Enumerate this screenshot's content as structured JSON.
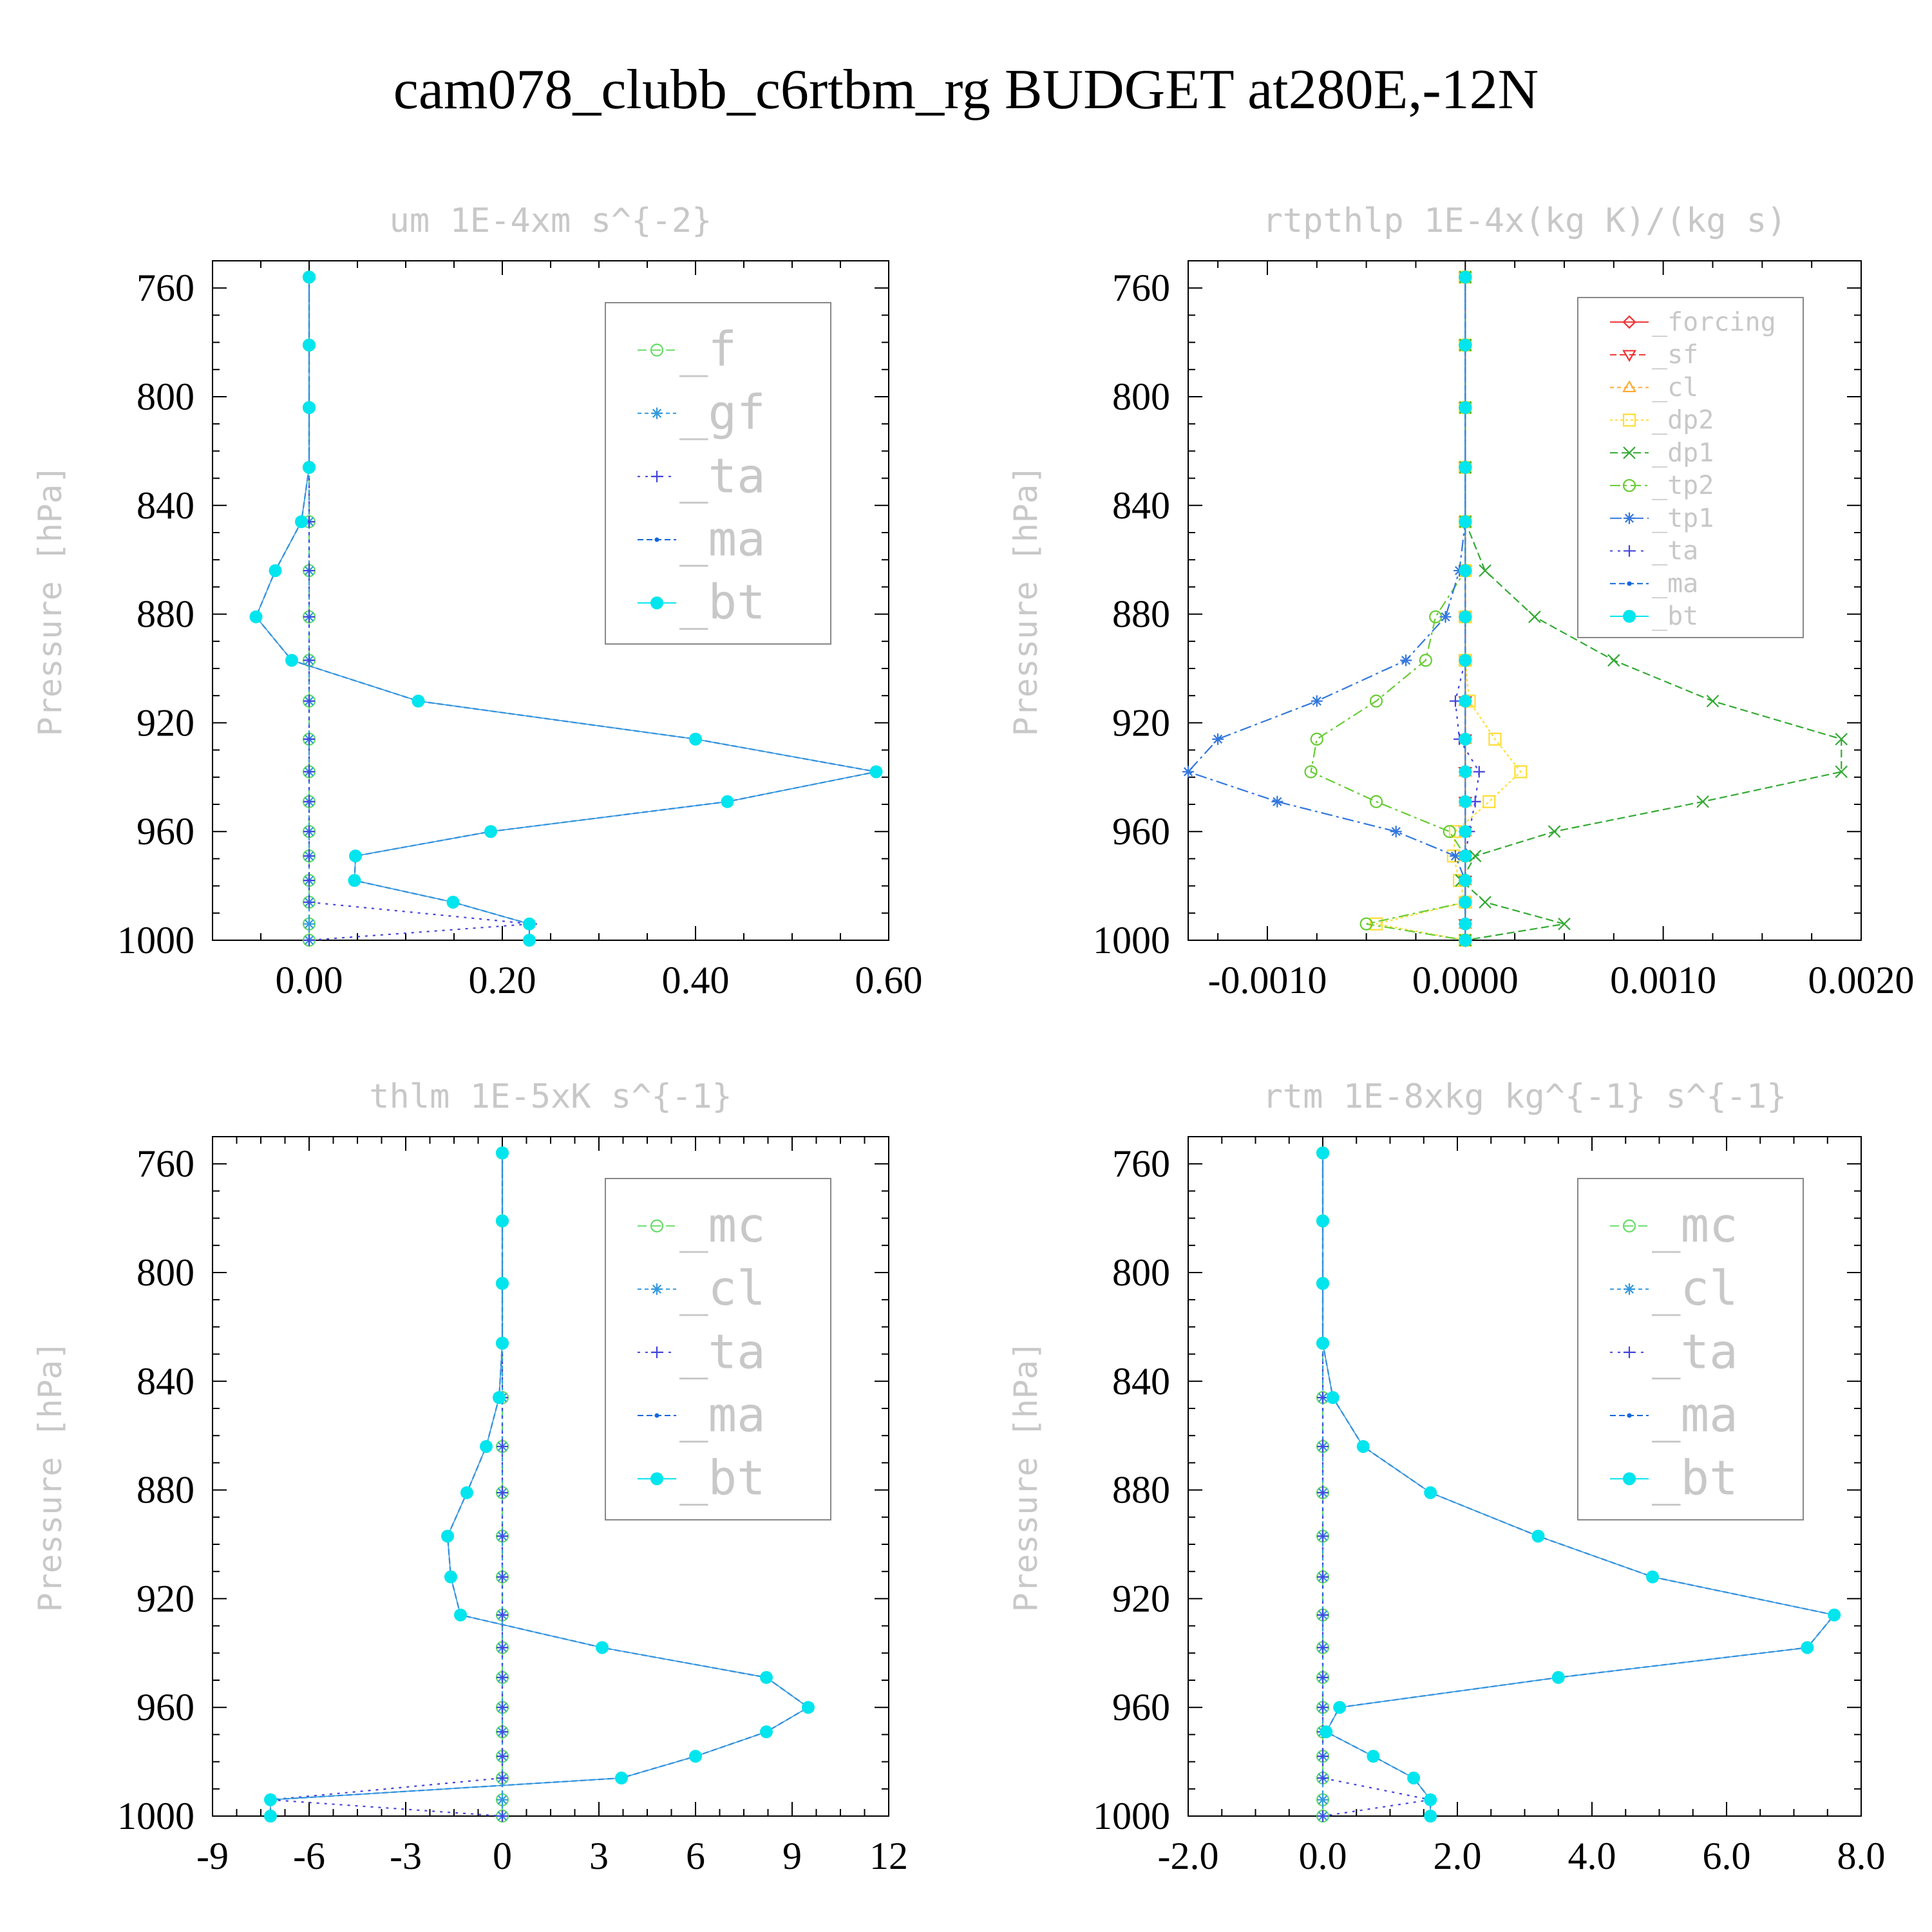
{
  "figure": {
    "title": "cam078_clubb_c6rtbm_rg  BUDGET at280E,-12N"
  },
  "colors": {
    "_f": "#66dd66",
    "_gf": "#3399dd",
    "_ta": "#4444dd",
    "_ma": "#1166dd",
    "_bt": "#00e5ee",
    "_mc": "#66dd66",
    "_cl": "#3399dd",
    "_forcing": "#ee3333",
    "_sf": "#ee3333",
    "_cl_orange": "#ffaa33",
    "_dp2": "#ffdd33",
    "_dp1": "#33aa33",
    "_tp2": "#66cc33",
    "_tp1": "#3377dd"
  },
  "chart_data": [
    {
      "type": "line",
      "title": "um  1E-4xm s^{-2}",
      "ylabel": "Pressure [hPa]",
      "xlim": [
        -0.1,
        0.6
      ],
      "ylim": [
        750,
        1000
      ],
      "y_inverted": true,
      "xticks": [
        "0.00",
        "0.20",
        "0.40",
        "0.60"
      ],
      "xtick_values": [
        0,
        0.2,
        0.4,
        0.6
      ],
      "yticks": [
        "760",
        "800",
        "840",
        "880",
        "920",
        "960",
        "1000"
      ],
      "legend": "top-right",
      "levels": [
        756,
        781,
        804,
        826,
        846,
        864,
        881,
        897,
        912,
        926,
        938,
        949,
        960,
        969,
        978,
        986,
        994,
        1000
      ],
      "series": [
        {
          "name": "_f",
          "marker": "circle",
          "values": [
            0,
            0,
            0,
            0,
            0,
            0,
            0,
            0,
            0,
            0,
            0,
            0,
            0,
            0,
            0,
            0,
            0,
            0
          ]
        },
        {
          "name": "_gf",
          "marker": "star",
          "values": [
            0,
            0,
            0,
            0,
            0,
            0,
            0,
            0,
            0,
            0,
            0,
            0,
            0,
            0,
            0,
            0,
            0,
            0
          ]
        },
        {
          "name": "_ta",
          "marker": "plus",
          "values": [
            0,
            0,
            0,
            0,
            0,
            0,
            0,
            0,
            0,
            0,
            0,
            0,
            0,
            0,
            0,
            0,
            0.23,
            0
          ]
        },
        {
          "name": "_ma",
          "marker": "dot",
          "values": [
            0,
            0,
            0,
            0,
            -0.008,
            -0.035,
            -0.055,
            -0.018,
            0.113,
            0.4,
            0.587,
            0.433,
            0.188,
            0.048,
            0.047,
            0.149,
            0.228,
            0.228
          ]
        },
        {
          "name": "_bt",
          "marker": "filled",
          "values": [
            0,
            0,
            0,
            0,
            -0.008,
            -0.035,
            -0.055,
            -0.018,
            0.113,
            0.4,
            0.587,
            0.433,
            0.188,
            0.048,
            0.047,
            0.149,
            0.228,
            0.228
          ]
        }
      ]
    },
    {
      "type": "line",
      "title": "rtpthlp  1E-4x(kg K)/(kg s)",
      "ylabel": "Pressure [hPa]",
      "xlim": [
        -0.0014,
        0.002
      ],
      "ylim": [
        750,
        1000
      ],
      "y_inverted": true,
      "xticks": [
        "-0.0010",
        "0.0000",
        "0.0010",
        "0.0020"
      ],
      "xtick_values": [
        -0.001,
        0,
        0.001,
        0.002
      ],
      "yticks": [
        "760",
        "800",
        "840",
        "880",
        "920",
        "960",
        "1000"
      ],
      "legend": "top-right",
      "levels": [
        756,
        781,
        804,
        826,
        846,
        864,
        881,
        897,
        912,
        926,
        938,
        949,
        960,
        969,
        978,
        986,
        994,
        1000
      ],
      "series": [
        {
          "name": "_forcing",
          "marker": "diamond",
          "values": [
            0,
            0,
            0,
            0,
            0,
            0,
            0,
            0,
            0,
            0,
            0,
            0,
            0,
            0,
            0,
            0,
            0,
            0
          ]
        },
        {
          "name": "_sf",
          "marker": "tri-down",
          "values": [
            0,
            0,
            0,
            0,
            0,
            0,
            0,
            0,
            0,
            0,
            0,
            0,
            0,
            0,
            0,
            0,
            0,
            0
          ]
        },
        {
          "name": "_cl",
          "marker": "tri-up",
          "values": [
            0,
            0,
            0,
            0,
            0,
            0,
            0,
            0,
            0,
            0,
            0,
            0,
            0,
            0,
            0,
            0,
            0,
            0
          ]
        },
        {
          "name": "_dp2",
          "marker": "square",
          "values": [
            0,
            0,
            0,
            0,
            0,
            0,
            0,
            0,
            2e-05,
            0.00015,
            0.00028,
            0.00012,
            -5e-05,
            -6e-05,
            -3e-05,
            0,
            -0.00045,
            0
          ]
        },
        {
          "name": "_dp1",
          "marker": "x",
          "values": [
            0,
            0,
            0,
            0,
            0,
            0.0001,
            0.00035,
            0.00075,
            0.00125,
            0.0019,
            0.0019,
            0.0012,
            0.00045,
            5e-05,
            -2e-05,
            0.0001,
            0.0005,
            0
          ]
        },
        {
          "name": "_tp2",
          "marker": "circle",
          "values": [
            0,
            0,
            0,
            0,
            0,
            0,
            -0.00015,
            -0.0002,
            -0.00045,
            -0.00075,
            -0.00078,
            -0.00045,
            -8e-05,
            0,
            0,
            0,
            -0.0005,
            0
          ]
        },
        {
          "name": "_tp1",
          "marker": "star",
          "values": [
            0,
            0,
            0,
            0,
            0,
            -3e-05,
            -0.0001,
            -0.0003,
            -0.00075,
            -0.00125,
            -0.0014,
            -0.00095,
            -0.00035,
            -5e-05,
            0,
            0,
            0,
            0
          ]
        },
        {
          "name": "_ta",
          "marker": "plus",
          "values": [
            0,
            0,
            0,
            0,
            0,
            0,
            0,
            0,
            -5e-05,
            -3e-05,
            7e-05,
            5e-05,
            2e-05,
            0,
            0,
            0,
            0,
            0
          ]
        },
        {
          "name": "_ma",
          "marker": "dot",
          "values": [
            0,
            0,
            0,
            0,
            0,
            0,
            0,
            0,
            0,
            0,
            0,
            0,
            0,
            0,
            0,
            0,
            0,
            0
          ]
        },
        {
          "name": "_bt",
          "marker": "filled",
          "values": [
            0,
            0,
            0,
            0,
            0,
            0,
            0,
            0,
            0,
            0,
            0,
            0,
            0,
            0,
            0,
            0,
            0,
            0
          ]
        }
      ]
    },
    {
      "type": "line",
      "title": "thlm  1E-5xK s^{-1}",
      "ylabel": "Pressure [hPa]",
      "xlim": [
        -9,
        12
      ],
      "ylim": [
        750,
        1000
      ],
      "y_inverted": true,
      "xticks": [
        "-9",
        "-6",
        "-3",
        "0",
        "3",
        "6",
        "9",
        "12"
      ],
      "xtick_values": [
        -9,
        -6,
        -3,
        0,
        3,
        6,
        9,
        12
      ],
      "yticks": [
        "760",
        "800",
        "840",
        "880",
        "920",
        "960",
        "1000"
      ],
      "legend": "top-right",
      "levels": [
        756,
        781,
        804,
        826,
        846,
        864,
        881,
        897,
        912,
        926,
        938,
        949,
        960,
        969,
        978,
        986,
        994,
        1000
      ],
      "series": [
        {
          "name": "_mc",
          "marker": "circle",
          "values": [
            0,
            0,
            0,
            0,
            0,
            0,
            0,
            0,
            0,
            0,
            0,
            0,
            0,
            0,
            0,
            0,
            0,
            0
          ]
        },
        {
          "name": "_cl",
          "marker": "star",
          "values": [
            0,
            0,
            0,
            0,
            0,
            0,
            0,
            0,
            0,
            0,
            0,
            0,
            0,
            0,
            0,
            0,
            0,
            0
          ]
        },
        {
          "name": "_ta",
          "marker": "plus",
          "values": [
            0,
            0,
            0,
            0,
            0,
            0,
            0,
            0,
            0,
            0,
            0,
            0,
            0,
            0,
            0,
            0,
            -7.2,
            0
          ]
        },
        {
          "name": "_ma",
          "marker": "dot",
          "values": [
            0,
            0,
            0,
            0,
            -0.1,
            -0.5,
            -1.1,
            -1.7,
            -1.6,
            -1.3,
            3.1,
            8.2,
            9.5,
            8.2,
            6.0,
            3.7,
            -7.2,
            -7.2
          ]
        },
        {
          "name": "_bt",
          "marker": "filled",
          "values": [
            0,
            0,
            0,
            0,
            -0.1,
            -0.5,
            -1.1,
            -1.7,
            -1.6,
            -1.3,
            3.1,
            8.2,
            9.5,
            8.2,
            6.0,
            3.7,
            -7.2,
            -7.2
          ]
        }
      ]
    },
    {
      "type": "line",
      "title": "rtm  1E-8xkg kg^{-1} s^{-1}",
      "ylabel": "Pressure [hPa]",
      "xlim": [
        -2,
        8
      ],
      "ylim": [
        750,
        1000
      ],
      "y_inverted": true,
      "xticks": [
        "-2.0",
        "0.0",
        "2.0",
        "4.0",
        "6.0",
        "8.0"
      ],
      "xtick_values": [
        -2,
        0,
        2,
        4,
        6,
        8
      ],
      "yticks": [
        "760",
        "800",
        "840",
        "880",
        "920",
        "960",
        "1000"
      ],
      "legend": "top-right",
      "levels": [
        756,
        781,
        804,
        826,
        846,
        864,
        881,
        897,
        912,
        926,
        938,
        949,
        960,
        969,
        978,
        986,
        994,
        1000
      ],
      "series": [
        {
          "name": "_mc",
          "marker": "circle",
          "values": [
            0,
            0,
            0,
            0,
            0,
            0,
            0,
            0,
            0,
            0,
            0,
            0,
            0,
            0,
            0,
            0,
            0,
            0
          ]
        },
        {
          "name": "_cl",
          "marker": "star",
          "values": [
            0,
            0,
            0,
            0,
            0,
            0,
            0,
            0,
            0,
            0,
            0,
            0,
            0,
            0,
            0,
            0,
            0,
            0
          ]
        },
        {
          "name": "_ta",
          "marker": "plus",
          "values": [
            0,
            0,
            0,
            0,
            0,
            0,
            0,
            0,
            0,
            0,
            0,
            0,
            0,
            0,
            0,
            0,
            1.6,
            0
          ]
        },
        {
          "name": "_ma",
          "marker": "dot",
          "values": [
            0,
            0,
            0,
            0,
            0.15,
            0.6,
            1.6,
            3.2,
            4.9,
            7.6,
            7.2,
            3.5,
            0.25,
            0.05,
            0.75,
            1.35,
            1.6,
            1.6
          ]
        },
        {
          "name": "_bt",
          "marker": "filled",
          "values": [
            0,
            0,
            0,
            0,
            0.15,
            0.6,
            1.6,
            3.2,
            4.9,
            7.6,
            7.2,
            3.5,
            0.25,
            0.05,
            0.75,
            1.35,
            1.6,
            1.6
          ]
        }
      ]
    }
  ]
}
